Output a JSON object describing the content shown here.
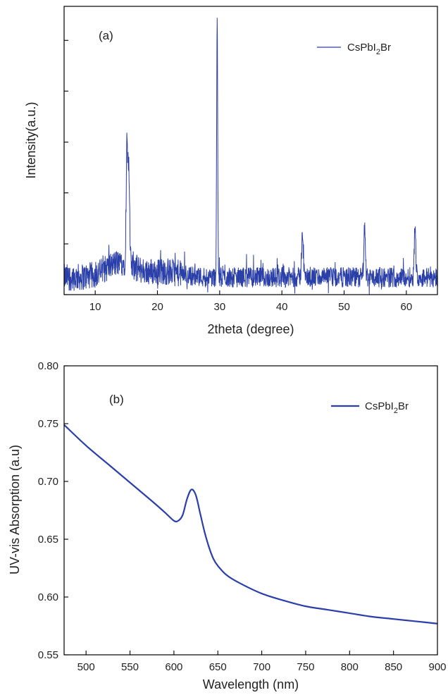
{
  "chart_data": [
    {
      "type": "line",
      "panel_label": "(a)",
      "xlabel": "2theta (degree)",
      "ylabel": "Intensity(a.u.)",
      "xlim": [
        5,
        65
      ],
      "ylim": [
        0,
        100
      ],
      "x_ticks": [
        10,
        20,
        30,
        40,
        50,
        60
      ],
      "y_ticks": [
        0,
        17.6,
        35.3,
        52.9,
        70.6,
        88.2
      ],
      "y_tick_labels_shown": false,
      "grid": false,
      "legend_position": "top-right",
      "line_color": "#2b3fa8",
      "series": [
        {
          "name": "CsPbI",
          "name_subscript": "2",
          "name_suffix": "Br",
          "baseline": 6,
          "noise": 3.5,
          "peaks": [
            {
              "x": 15.1,
              "height": 47
            },
            {
              "x": 15.4,
              "height": 38
            },
            {
              "x": 29.6,
              "height": 96
            },
            {
              "x": 43.3,
              "height": 22
            },
            {
              "x": 53.3,
              "height": 23
            },
            {
              "x": 61.4,
              "height": 23
            }
          ],
          "humps": [
            {
              "center": 14.0,
              "width": 3.2,
              "height": 5
            },
            {
              "center": 21.0,
              "width": 4.0,
              "height": 2
            }
          ]
        }
      ]
    },
    {
      "type": "line",
      "panel_label": "(b)",
      "xlabel": "Wavelength (nm)",
      "ylabel": "UV-vis Absorption (a.u)",
      "xlim": [
        475,
        900
      ],
      "ylim": [
        0.55,
        0.8
      ],
      "x_ticks": [
        500,
        550,
        600,
        650,
        700,
        750,
        800,
        850,
        900
      ],
      "x_tick_labels": [
        "500",
        "550",
        "600",
        "650",
        "700",
        "750",
        "800",
        "850",
        "900"
      ],
      "y_ticks": [
        0.55,
        0.6,
        0.65,
        0.7,
        0.75,
        0.8
      ],
      "y_tick_labels": [
        "0.55",
        "0.60",
        "0.65",
        "0.70",
        "0.75",
        "0.80"
      ],
      "grid": false,
      "legend_position": "top-right",
      "line_color": "#2b3fa8",
      "series": [
        {
          "name": "CsPbI",
          "name_subscript": "2",
          "name_suffix": "Br",
          "x": [
            475,
            500,
            525,
            550,
            575,
            590,
            600,
            605,
            610,
            615,
            620,
            625,
            630,
            635,
            640,
            645,
            650,
            660,
            675,
            700,
            725,
            750,
            775,
            800,
            825,
            850,
            875,
            900
          ],
          "y": [
            0.749,
            0.731,
            0.715,
            0.699,
            0.683,
            0.673,
            0.666,
            0.666,
            0.671,
            0.685,
            0.693,
            0.688,
            0.672,
            0.656,
            0.643,
            0.633,
            0.627,
            0.619,
            0.612,
            0.603,
            0.597,
            0.592,
            0.589,
            0.586,
            0.583,
            0.581,
            0.579,
            0.577
          ]
        }
      ]
    }
  ]
}
